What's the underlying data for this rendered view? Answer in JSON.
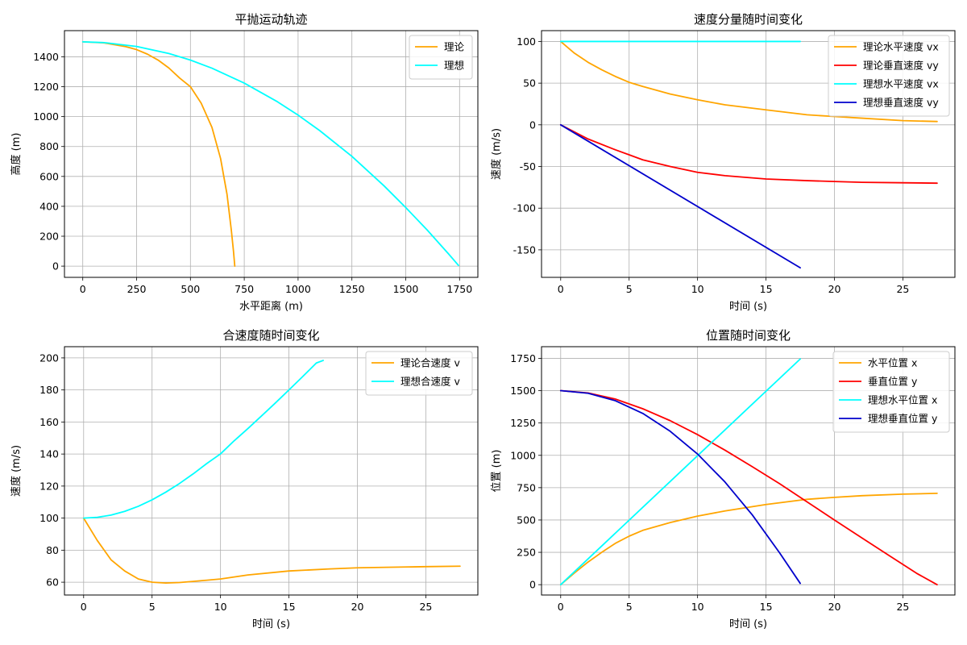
{
  "chart_data": [
    {
      "type": "line",
      "title": "平抛运动轨迹",
      "xlabel": "水平距离 (m)",
      "ylabel": "高度 (m)",
      "xlim": [
        -85,
        1835
      ],
      "ylim": [
        -75,
        1575
      ],
      "xticks": [
        0,
        250,
        500,
        750,
        1000,
        1250,
        1500,
        1750
      ],
      "yticks": [
        0,
        200,
        400,
        600,
        800,
        1000,
        1200,
        1400
      ],
      "grid": true,
      "legend": "top-right",
      "series": [
        {
          "name": "理论",
          "color": "#FFA500",
          "x": [
            0,
            100,
            200,
            250,
            300,
            350,
            400,
            450,
            500,
            550,
            600,
            640,
            670,
            690,
            700,
            706
          ],
          "y": [
            1500,
            1493,
            1468,
            1448,
            1418,
            1378,
            1325,
            1258,
            1200,
            1090,
            928,
            720,
            480,
            240,
            100,
            0
          ]
        },
        {
          "name": "理想",
          "color": "#00FFFF",
          "x": [
            0,
            100,
            250,
            400,
            500,
            600,
            750,
            900,
            1000,
            1100,
            1250,
            1400,
            1500,
            1600,
            1700,
            1745
          ],
          "y": [
            1500,
            1495,
            1469,
            1422,
            1378,
            1324,
            1224,
            1103,
            1010,
            907,
            734,
            536,
            392,
            241,
            80,
            5
          ]
        }
      ]
    },
    {
      "type": "line",
      "title": "速度分量随时间变化",
      "xlabel": "时间 (s)",
      "ylabel": "速度 (m/s)",
      "xlim": [
        -1.4,
        28.8
      ],
      "ylim": [
        -183,
        113
      ],
      "xticks": [
        0,
        5,
        10,
        15,
        20,
        25
      ],
      "yticks": [
        100,
        50,
        0,
        -50,
        -100,
        -150
      ],
      "grid": true,
      "legend": "top-right",
      "series": [
        {
          "name": "理论水平速度 vx",
          "color": "#FFA500",
          "x": [
            0,
            1,
            2,
            3,
            4,
            5,
            6,
            8,
            10,
            12,
            15,
            18,
            20,
            22,
            25,
            27.5
          ],
          "y": [
            100,
            86,
            75,
            66,
            58,
            51,
            46,
            37,
            30,
            24,
            18,
            12,
            10,
            8,
            5,
            4
          ]
        },
        {
          "name": "理论垂直速度 vy",
          "color": "#FF0000",
          "x": [
            0,
            2,
            4,
            5,
            6,
            8,
            10,
            12,
            15,
            18,
            20,
            22,
            25,
            27.5
          ],
          "y": [
            0,
            -17,
            -30,
            -36,
            -42,
            -50,
            -57,
            -61,
            -65,
            -67,
            -68,
            -69,
            -69.5,
            -70
          ]
        },
        {
          "name": "理想水平速度 vx",
          "color": "#00FFFF",
          "x": [
            0,
            17.5
          ],
          "y": [
            100,
            100
          ]
        },
        {
          "name": "理想垂直速度 vy",
          "color": "#0000CC",
          "x": [
            0,
            17.5
          ],
          "y": [
            0,
            -171.5
          ]
        }
      ]
    },
    {
      "type": "line",
      "title": "合速度随时间变化",
      "xlabel": "时间 (s)",
      "ylabel": "速度 (m/s)",
      "xlim": [
        -1.4,
        28.8
      ],
      "ylim": [
        52,
        207
      ],
      "xticks": [
        0,
        5,
        10,
        15,
        20,
        25
      ],
      "yticks": [
        60,
        80,
        100,
        120,
        140,
        160,
        180,
        200
      ],
      "grid": true,
      "legend": "top-right",
      "series": [
        {
          "name": "理论合速度 v",
          "color": "#FFA500",
          "x": [
            0,
            1,
            2,
            3,
            4,
            5,
            6,
            7,
            8,
            10,
            12,
            15,
            18,
            20,
            25,
            27.5
          ],
          "y": [
            100,
            86,
            74,
            67,
            62,
            60,
            59.5,
            59.8,
            60.5,
            62,
            64.5,
            67,
            68.3,
            69,
            69.7,
            70
          ]
        },
        {
          "name": "理想合速度 v",
          "color": "#00FFFF",
          "x": [
            0,
            1,
            2,
            3,
            4,
            5,
            6,
            7,
            8,
            9,
            10,
            11,
            12,
            13,
            14,
            15,
            16,
            17,
            17.5
          ],
          "y": [
            100,
            100.5,
            101.9,
            104.2,
            107.4,
            111.4,
            116.2,
            121.6,
            127.6,
            134.1,
            140.1,
            148.3,
            155.9,
            163.8,
            171.8,
            180.0,
            188.3,
            196.8,
            198.4
          ]
        }
      ]
    },
    {
      "type": "line",
      "title": "位置随时间变化",
      "xlabel": "时间 (s)",
      "ylabel": "位置 (m)",
      "xlim": [
        -1.4,
        28.8
      ],
      "ylim": [
        -80,
        1840
      ],
      "xticks": [
        0,
        5,
        10,
        15,
        20,
        25
      ],
      "yticks": [
        0,
        250,
        500,
        750,
        1000,
        1250,
        1500,
        1750
      ],
      "grid": true,
      "legend": "top-right",
      "series": [
        {
          "name": "水平位置 x",
          "color": "#FFA500",
          "x": [
            0,
            1,
            2,
            3,
            4,
            5,
            6,
            8,
            10,
            12,
            15,
            18,
            20,
            22,
            25,
            27.5
          ],
          "y": [
            0,
            90,
            175,
            250,
            320,
            375,
            420,
            480,
            530,
            570,
            620,
            660,
            675,
            688,
            700,
            706
          ]
        },
        {
          "name": "垂直位置 y",
          "color": "#FF0000",
          "x": [
            0,
            2,
            4,
            6,
            8,
            10,
            12,
            14,
            16,
            18,
            20,
            22,
            24,
            26,
            27.5
          ],
          "y": [
            1500,
            1482,
            1435,
            1360,
            1268,
            1160,
            1040,
            912,
            780,
            640,
            500,
            362,
            225,
            88,
            0
          ]
        },
        {
          "name": "理想水平位置 x",
          "color": "#00FFFF",
          "x": [
            0,
            17.5
          ],
          "y": [
            0,
            1745
          ]
        },
        {
          "name": "理想垂直位置 y",
          "color": "#0000CC",
          "x": [
            0,
            2,
            4,
            6,
            8,
            10,
            12,
            14,
            16,
            17.5
          ],
          "y": [
            1500,
            1480,
            1422,
            1324,
            1186,
            1010,
            794,
            539,
            245,
            10
          ]
        }
      ]
    }
  ]
}
